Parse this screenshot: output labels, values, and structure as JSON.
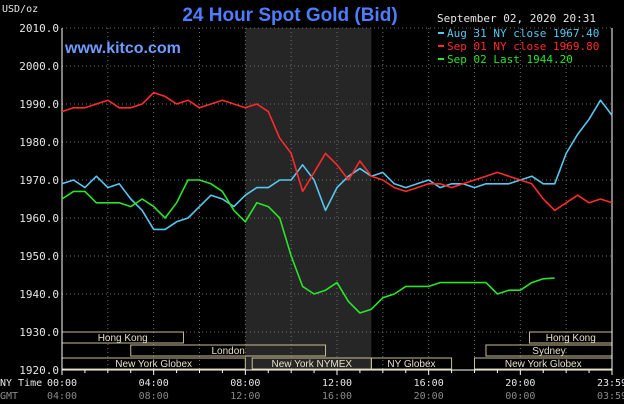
{
  "chart_data": {
    "type": "line",
    "title": "24 Hour Spot Gold (Bid)",
    "site": "www.kitco.com",
    "unit_label": "USD/oz",
    "timestamp": "September 02, 2020 20:31",
    "xlim": [
      0,
      24
    ],
    "ylim": [
      1920,
      2010
    ],
    "yticks": [
      {
        "v": 2010,
        "label": "2010.0"
      },
      {
        "v": 2000,
        "label": "2000.0"
      },
      {
        "v": 1990,
        "label": "1990.0"
      },
      {
        "v": 1980,
        "label": "1980.0"
      },
      {
        "v": 1970,
        "label": "1970.0"
      },
      {
        "v": 1960,
        "label": "1960.0"
      },
      {
        "v": 1950,
        "label": "1950.0"
      },
      {
        "v": 1940,
        "label": "1940.0"
      },
      {
        "v": 1930,
        "label": "1930.0"
      },
      {
        "v": 1920,
        "label": "1920.0"
      }
    ],
    "xticks_ny": [
      {
        "v": 0,
        "label": "00:00"
      },
      {
        "v": 4,
        "label": "04:00"
      },
      {
        "v": 8,
        "label": "08:00"
      },
      {
        "v": 12,
        "label": "12:00"
      },
      {
        "v": 16,
        "label": "16:00"
      },
      {
        "v": 20,
        "label": "20:00"
      },
      {
        "v": 24,
        "label": "23:59"
      }
    ],
    "xticks_gmt": [
      {
        "v": 0,
        "label": "04:00"
      },
      {
        "v": 4,
        "label": "08:00"
      },
      {
        "v": 8,
        "label": "12:00"
      },
      {
        "v": 12,
        "label": "16:00"
      },
      {
        "v": 16,
        "label": "20:00"
      },
      {
        "v": 20,
        "label": "00:00"
      },
      {
        "v": 24,
        "label": "03:59"
      }
    ],
    "ny_time_label": "NY Time",
    "gmt_label": "GMT",
    "shaded_range": [
      8,
      13.5
    ],
    "colors": {
      "axis": "#ffffff",
      "grid": "#6e6e6e",
      "shade": "#262626",
      "title": "#4f7dff",
      "site": "#6f9cff"
    },
    "series": [
      {
        "name": "Aug 31 NY close 1967.40",
        "color": "#56c8f0",
        "points": [
          [
            0,
            1969
          ],
          [
            0.5,
            1970
          ],
          [
            1,
            1968
          ],
          [
            1.5,
            1971
          ],
          [
            2,
            1968
          ],
          [
            2.5,
            1969
          ],
          [
            3,
            1965
          ],
          [
            3.5,
            1962
          ],
          [
            4,
            1957
          ],
          [
            4.5,
            1957
          ],
          [
            5,
            1959
          ],
          [
            5.5,
            1960
          ],
          [
            6,
            1963
          ],
          [
            6.5,
            1966
          ],
          [
            7,
            1965
          ],
          [
            7.5,
            1963
          ],
          [
            8,
            1966
          ],
          [
            8.5,
            1968
          ],
          [
            9,
            1968
          ],
          [
            9.5,
            1970
          ],
          [
            10,
            1970
          ],
          [
            10.5,
            1974
          ],
          [
            11,
            1970
          ],
          [
            11.5,
            1962
          ],
          [
            12,
            1968
          ],
          [
            12.5,
            1971
          ],
          [
            13,
            1973
          ],
          [
            13.5,
            1971
          ],
          [
            14,
            1972
          ],
          [
            14.5,
            1969
          ],
          [
            15,
            1968
          ],
          [
            15.5,
            1969
          ],
          [
            16,
            1970
          ],
          [
            16.5,
            1968
          ],
          [
            17,
            1969
          ],
          [
            17.5,
            1969
          ],
          [
            18,
            1968
          ],
          [
            18.5,
            1969
          ],
          [
            19,
            1969
          ],
          [
            19.5,
            1969
          ],
          [
            20,
            1970
          ],
          [
            20.5,
            1971
          ],
          [
            21,
            1969
          ],
          [
            21.5,
            1969
          ],
          [
            22,
            1977
          ],
          [
            22.5,
            1982
          ],
          [
            23,
            1986
          ],
          [
            23.5,
            1991
          ],
          [
            24,
            1987
          ]
        ]
      },
      {
        "name": "Sep 01 NY close 1969.80",
        "color": "#ff2a2a",
        "points": [
          [
            0,
            1988
          ],
          [
            0.5,
            1989
          ],
          [
            1,
            1989
          ],
          [
            1.5,
            1990
          ],
          [
            2,
            1991
          ],
          [
            2.5,
            1989
          ],
          [
            3,
            1989
          ],
          [
            3.5,
            1990
          ],
          [
            4,
            1993
          ],
          [
            4.5,
            1992
          ],
          [
            5,
            1990
          ],
          [
            5.5,
            1991
          ],
          [
            6,
            1989
          ],
          [
            6.5,
            1990
          ],
          [
            7,
            1991
          ],
          [
            7.5,
            1990
          ],
          [
            8,
            1989
          ],
          [
            8.5,
            1990
          ],
          [
            9,
            1988
          ],
          [
            9.5,
            1981
          ],
          [
            10,
            1977
          ],
          [
            10.5,
            1967
          ],
          [
            11,
            1972
          ],
          [
            11.5,
            1977
          ],
          [
            12,
            1974
          ],
          [
            12.5,
            1970
          ],
          [
            13,
            1975
          ],
          [
            13.5,
            1971
          ],
          [
            14,
            1970
          ],
          [
            14.5,
            1968
          ],
          [
            15,
            1967
          ],
          [
            15.5,
            1968
          ],
          [
            16,
            1969
          ],
          [
            16.5,
            1969
          ],
          [
            17,
            1968
          ],
          [
            17.5,
            1969
          ],
          [
            18,
            1970
          ],
          [
            18.5,
            1971
          ],
          [
            19,
            1972
          ],
          [
            19.5,
            1971
          ],
          [
            20,
            1970
          ],
          [
            20.5,
            1969
          ],
          [
            21,
            1965
          ],
          [
            21.5,
            1962
          ],
          [
            22,
            1964
          ],
          [
            22.5,
            1966
          ],
          [
            23,
            1964
          ],
          [
            23.5,
            1965
          ],
          [
            24,
            1964
          ]
        ]
      },
      {
        "name": "Sep 02 Last 1944.20",
        "color": "#27e627",
        "points": [
          [
            0,
            1965
          ],
          [
            0.5,
            1967
          ],
          [
            1,
            1967
          ],
          [
            1.5,
            1964
          ],
          [
            2,
            1964
          ],
          [
            2.5,
            1964
          ],
          [
            3,
            1963
          ],
          [
            3.5,
            1965
          ],
          [
            4,
            1963
          ],
          [
            4.5,
            1960
          ],
          [
            5,
            1964
          ],
          [
            5.5,
            1970
          ],
          [
            6,
            1970
          ],
          [
            6.5,
            1969
          ],
          [
            7,
            1967
          ],
          [
            7.5,
            1962
          ],
          [
            8,
            1959
          ],
          [
            8.5,
            1964
          ],
          [
            9,
            1963
          ],
          [
            9.5,
            1960
          ],
          [
            10,
            1950
          ],
          [
            10.5,
            1942
          ],
          [
            11,
            1940
          ],
          [
            11.5,
            1941
          ],
          [
            12,
            1943
          ],
          [
            12.5,
            1938
          ],
          [
            13,
            1935
          ],
          [
            13.5,
            1936
          ],
          [
            14,
            1939
          ],
          [
            14.5,
            1940
          ],
          [
            15,
            1942
          ],
          [
            15.5,
            1942
          ],
          [
            16,
            1942
          ],
          [
            16.5,
            1943
          ],
          [
            17,
            1943
          ],
          [
            17.5,
            1943
          ],
          [
            18,
            1943
          ],
          [
            18.5,
            1943
          ],
          [
            19,
            1940
          ],
          [
            19.5,
            1941
          ],
          [
            20,
            1941
          ],
          [
            20.5,
            1943
          ],
          [
            21,
            1944
          ],
          [
            21.5,
            1944.2
          ]
        ]
      }
    ],
    "markets": [
      {
        "name": "Hong Kong",
        "start": 0,
        "end": 5.3,
        "row": 0
      },
      {
        "name": "Hong Kong",
        "start": 20.4,
        "end": 24,
        "row": 0
      },
      {
        "name": "London",
        "start": 3,
        "end": 11.5,
        "row": 1
      },
      {
        "name": "Sydney",
        "start": 18.5,
        "end": 24,
        "row": 1
      },
      {
        "name": "New York Globex",
        "start": 0,
        "end": 8,
        "row": 2
      },
      {
        "name": "New York NYMEX",
        "start": 8.3,
        "end": 13.5,
        "row": 2
      },
      {
        "name": "NY Globex",
        "start": 13.5,
        "end": 17,
        "row": 2
      },
      {
        "name": "New York Globex",
        "start": 18,
        "end": 24,
        "row": 2
      }
    ]
  }
}
